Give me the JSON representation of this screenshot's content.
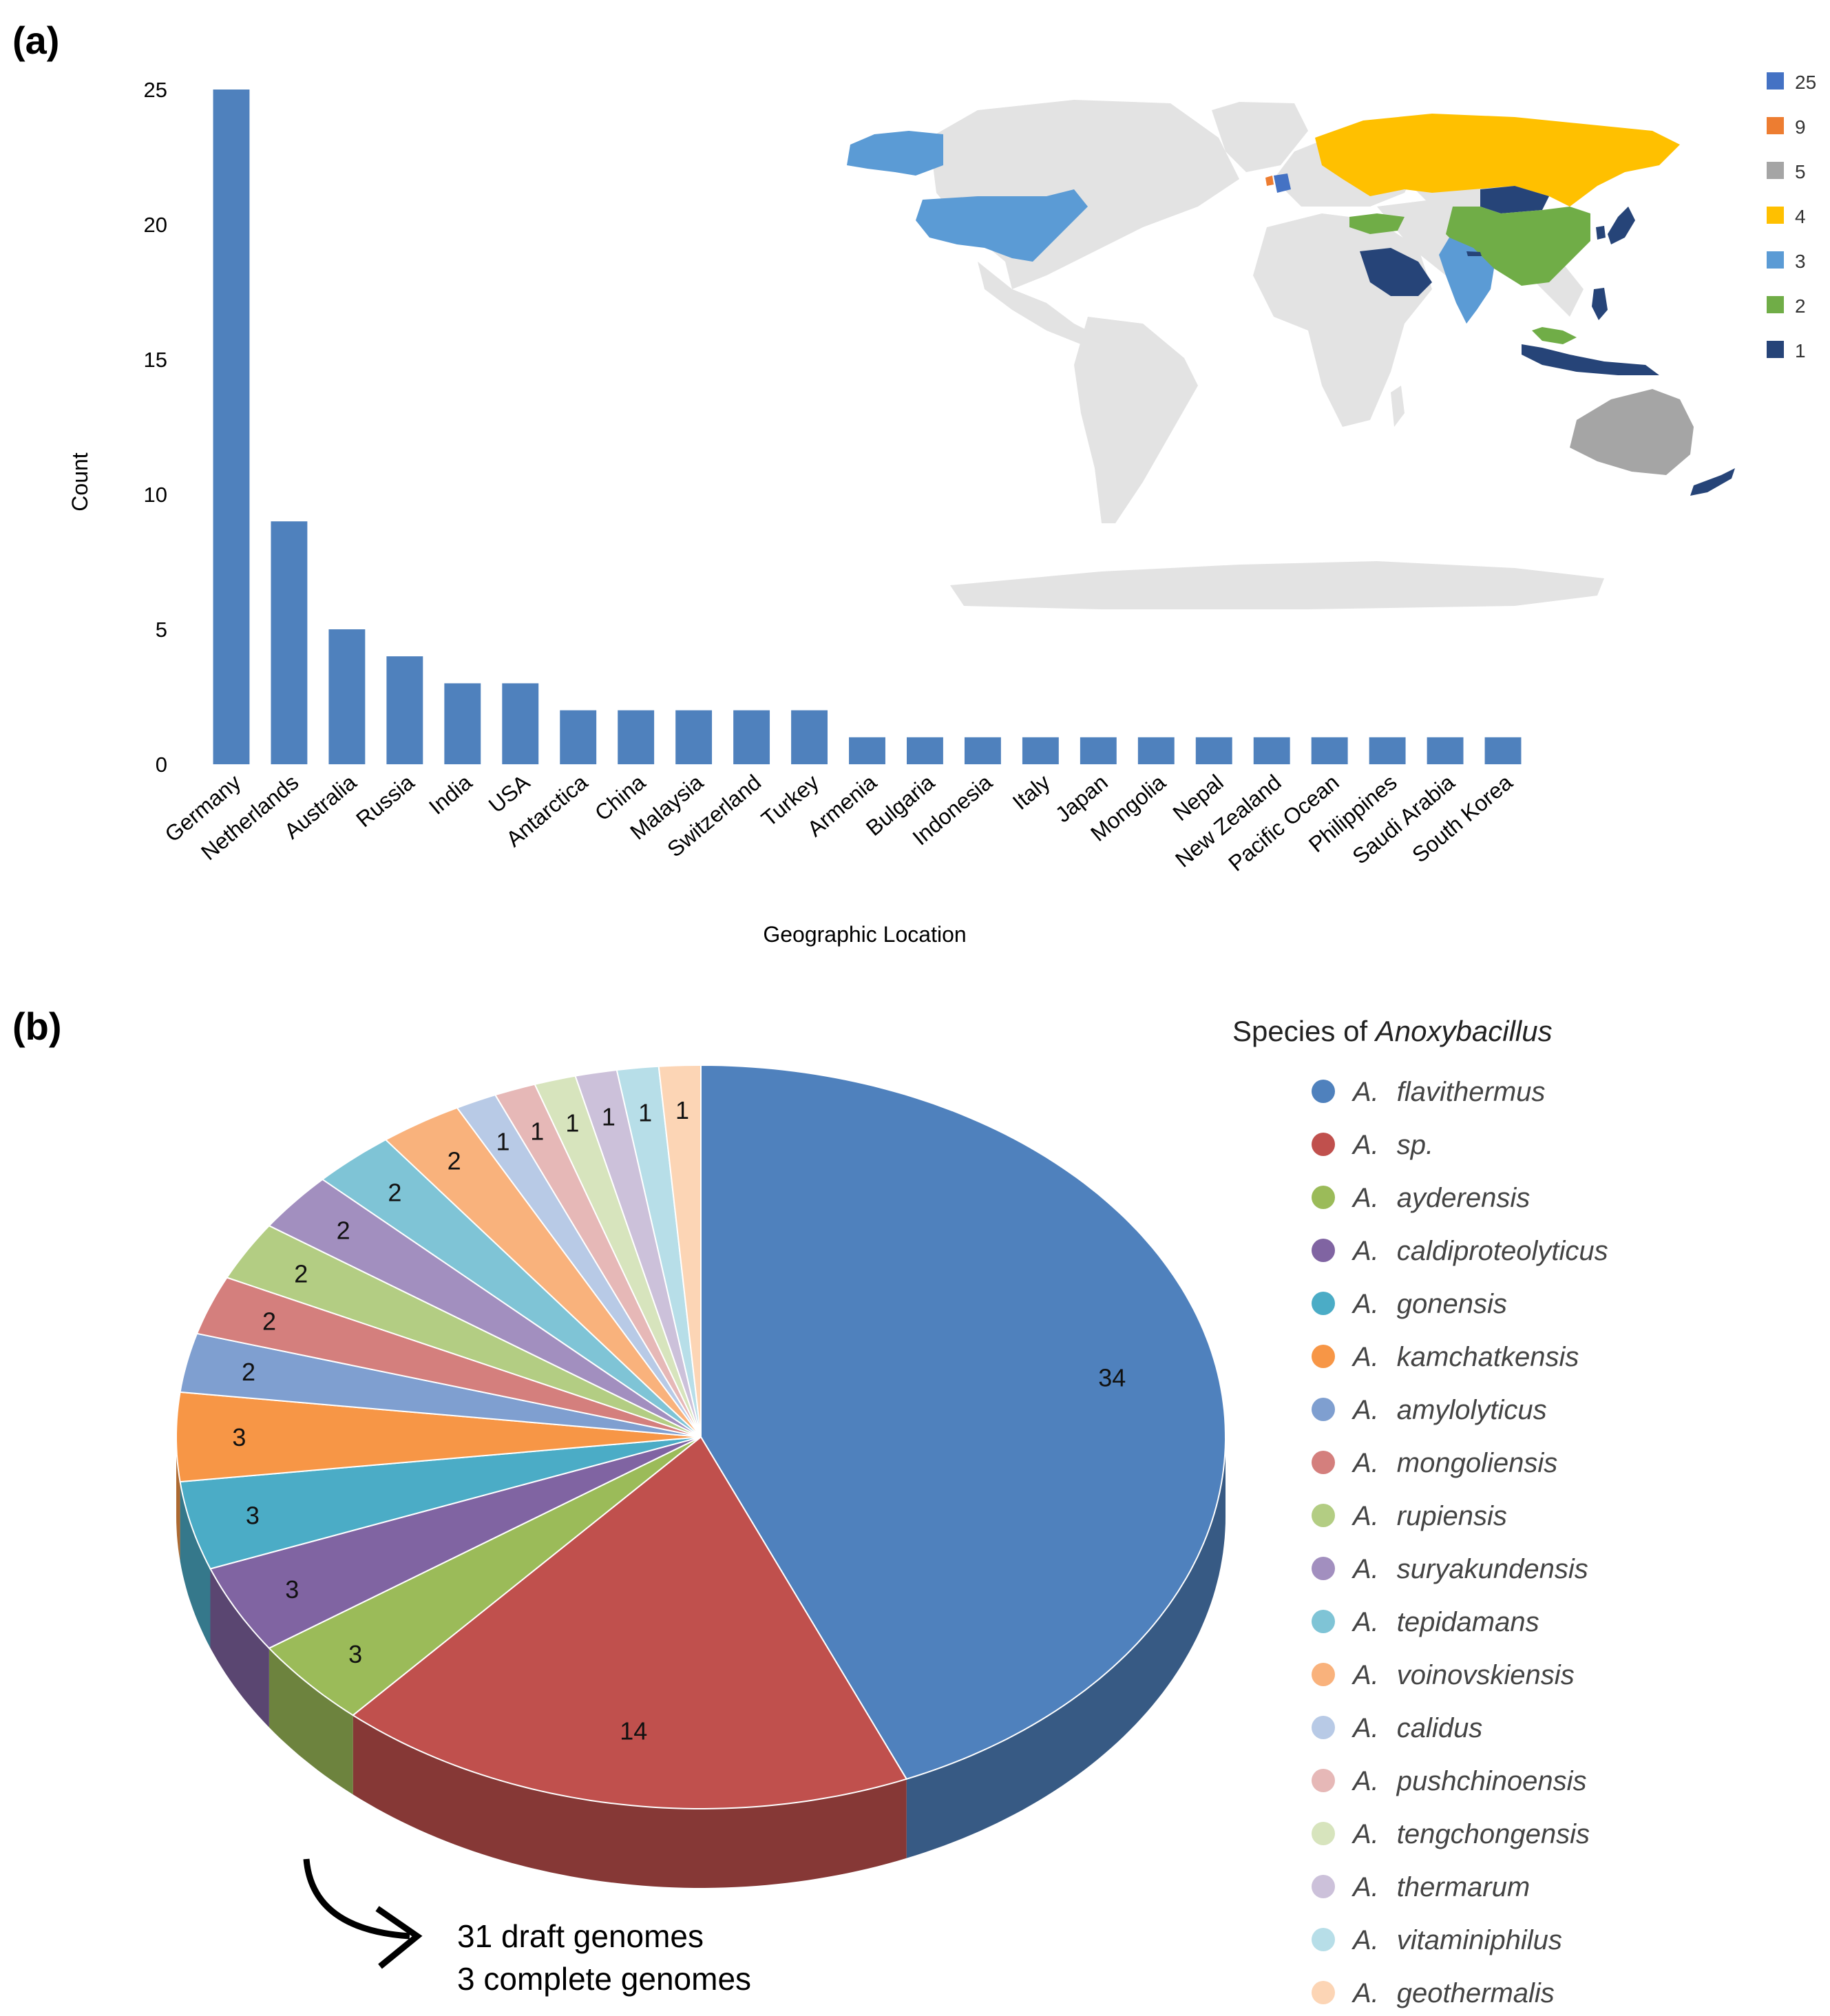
{
  "panel_a": {
    "label": "(a)",
    "map_legend": [
      {
        "label": "25",
        "color": "#4472c4"
      },
      {
        "label": "9",
        "color": "#ed7d31"
      },
      {
        "label": "5",
        "color": "#a5a5a5"
      },
      {
        "label": "4",
        "color": "#ffc000"
      },
      {
        "label": "3",
        "color": "#5b9bd5"
      },
      {
        "label": "2",
        "color": "#70ad47"
      },
      {
        "label": "1",
        "color": "#264478"
      }
    ],
    "map_base_color": "#e3e3e3"
  },
  "panel_b": {
    "label": "(b)",
    "legend_title_prefix": "Species of ",
    "legend_title_italic": "Anoxybacillus",
    "genus_abbrev": "A.",
    "annotation_line1": "31 draft genomes",
    "annotation_line2": "3 complete genomes"
  },
  "chart_data": [
    {
      "type": "bar",
      "xlabel": "Geographic Location",
      "ylabel": "Count",
      "ylim": [
        0,
        25
      ],
      "yticks": [
        0,
        5,
        10,
        15,
        20,
        25
      ],
      "grid": false,
      "bar_color": "#4f81bd",
      "categories": [
        "Germany",
        "Netherlands",
        "Australia",
        "Russia",
        "India",
        "USA",
        "Antarctica",
        "China",
        "Malaysia",
        "Switzerland",
        "Turkey",
        "Armenia",
        "Bulgaria",
        "Indonesia",
        "Italy",
        "Japan",
        "Mongolia",
        "Nepal",
        "New Zealand",
        "Pacific Ocean",
        "Philippines",
        "Saudi Arabia",
        "South Korea"
      ],
      "values": [
        25,
        9,
        5,
        4,
        3,
        3,
        2,
        2,
        2,
        2,
        2,
        1,
        1,
        1,
        1,
        1,
        1,
        1,
        1,
        1,
        1,
        1,
        1
      ]
    },
    {
      "type": "pie",
      "legend_placement": "right",
      "slices": [
        {
          "name": "flavithermus",
          "value": 34,
          "color": "#4f81bd"
        },
        {
          "name": "sp.",
          "value": 14,
          "color": "#c0504d"
        },
        {
          "name": "ayderensis",
          "value": 3,
          "color": "#9bbb59"
        },
        {
          "name": "caldiproteolyticus",
          "value": 3,
          "color": "#8064a2"
        },
        {
          "name": "gonensis",
          "value": 3,
          "color": "#4bacc6"
        },
        {
          "name": "kamchatkensis",
          "value": 3,
          "color": "#f79646"
        },
        {
          "name": "amylolyticus",
          "value": 2,
          "color": "#7f9fd0"
        },
        {
          "name": "mongoliensis",
          "value": 2,
          "color": "#d47f7d"
        },
        {
          "name": "rupiensis",
          "value": 2,
          "color": "#b3cd83"
        },
        {
          "name": "suryakundensis",
          "value": 2,
          "color": "#a28fbf"
        },
        {
          "name": "tepidamans",
          "value": 2,
          "color": "#7fc4d6"
        },
        {
          "name": "voinovskiensis",
          "value": 2,
          "color": "#f9b27c"
        },
        {
          "name": "calidus",
          "value": 1,
          "color": "#b8cae6"
        },
        {
          "name": "pushchinoensis",
          "value": 1,
          "color": "#e6b8b7"
        },
        {
          "name": "tengchongensis",
          "value": 1,
          "color": "#d7e4bd"
        },
        {
          "name": "thermarum",
          "value": 1,
          "color": "#ccc1da"
        },
        {
          "name": "vitaminiphilus",
          "value": 1,
          "color": "#b7dee8"
        },
        {
          "name": "geothermalis",
          "value": 1,
          "color": "#fcd5b5"
        }
      ]
    }
  ]
}
